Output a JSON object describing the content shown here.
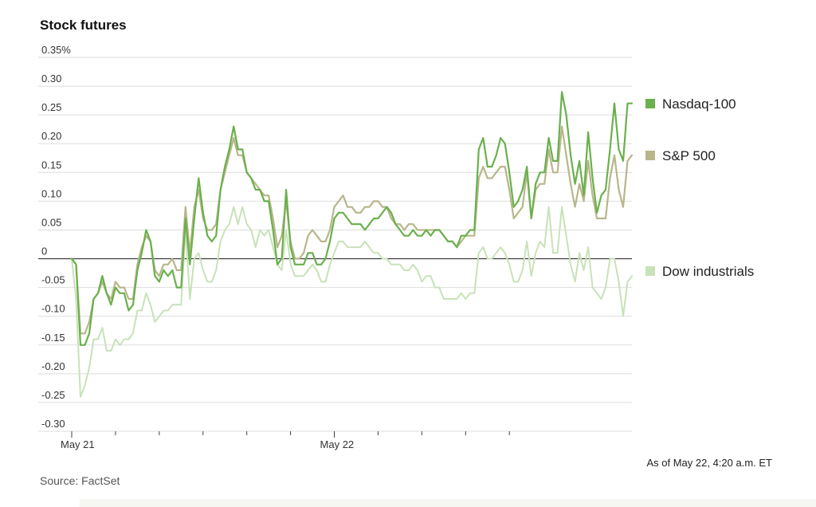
{
  "title": "Stock futures",
  "as_of": "As of May 22, 4:20 a.m. ET",
  "source": "Source: FactSet",
  "colors": {
    "nasdaq": "#6ab04c",
    "sp500": "#b8b68a",
    "dow": "#c8e2b8",
    "grid": "#dddddd",
    "zero": "#333333"
  },
  "chart_data": {
    "type": "line",
    "title": "Stock futures",
    "ylim": [
      -0.3,
      0.35
    ],
    "y_ticks": [
      {
        "v": 0.35,
        "label": "0.35%"
      },
      {
        "v": 0.3,
        "label": "0.30"
      },
      {
        "v": 0.25,
        "label": "0.25"
      },
      {
        "v": 0.2,
        "label": "0.20"
      },
      {
        "v": 0.15,
        "label": "0.15"
      },
      {
        "v": 0.1,
        "label": "0.10"
      },
      {
        "v": 0.05,
        "label": "0.05"
      },
      {
        "v": 0.0,
        "label": "0"
      },
      {
        "v": -0.05,
        "label": "-0.05"
      },
      {
        "v": -0.1,
        "label": "-0.10"
      },
      {
        "v": -0.15,
        "label": "-0.15"
      },
      {
        "v": -0.2,
        "label": "-0.20"
      },
      {
        "v": -0.25,
        "label": "-0.25"
      },
      {
        "v": -0.3,
        "label": "-0.30"
      }
    ],
    "x_labels": [
      {
        "index": 0,
        "label": "May 21"
      },
      {
        "index": 60,
        "label": "May 22"
      }
    ],
    "x_minor_ticks": [
      10,
      20,
      30,
      40,
      50,
      60,
      70,
      80,
      90,
      100
    ],
    "legend_position": "right",
    "series": [
      {
        "name": "Nasdaq-100",
        "key": "nasdaq",
        "values": [
          0.0,
          -0.01,
          -0.15,
          -0.15,
          -0.13,
          -0.07,
          -0.06,
          -0.03,
          -0.06,
          -0.08,
          -0.05,
          -0.06,
          -0.06,
          -0.09,
          -0.08,
          -0.02,
          0.01,
          0.05,
          0.03,
          -0.03,
          -0.04,
          -0.02,
          -0.03,
          -0.02,
          -0.05,
          -0.05,
          0.07,
          -0.01,
          0.07,
          0.14,
          0.08,
          0.04,
          0.03,
          0.04,
          0.12,
          0.16,
          0.19,
          0.23,
          0.19,
          0.19,
          0.15,
          0.14,
          0.12,
          0.12,
          0.1,
          0.1,
          0.05,
          -0.01,
          0.0,
          0.12,
          0.02,
          -0.01,
          -0.01,
          -0.01,
          0.01,
          0.01,
          -0.01,
          -0.01,
          0.0,
          0.03,
          0.07,
          0.08,
          0.08,
          0.07,
          0.06,
          0.06,
          0.06,
          0.05,
          0.06,
          0.07,
          0.07,
          0.08,
          0.09,
          0.08,
          0.06,
          0.05,
          0.04,
          0.04,
          0.05,
          0.04,
          0.04,
          0.05,
          0.04,
          0.05,
          0.05,
          0.04,
          0.03,
          0.03,
          0.02,
          0.04,
          0.04,
          0.05,
          0.05,
          0.19,
          0.21,
          0.16,
          0.16,
          0.18,
          0.21,
          0.2,
          0.15,
          0.09,
          0.1,
          0.12,
          0.16,
          0.07,
          0.13,
          0.15,
          0.15,
          0.21,
          0.17,
          0.17,
          0.29,
          0.25,
          0.18,
          0.13,
          0.17,
          0.11,
          0.22,
          0.14,
          0.08,
          0.11,
          0.12,
          0.19,
          0.27,
          0.19,
          0.17,
          0.27,
          0.27
        ]
      },
      {
        "name": "S&P 500",
        "key": "sp500",
        "values": [
          0.0,
          -0.01,
          -0.13,
          -0.13,
          -0.11,
          -0.07,
          -0.06,
          -0.04,
          -0.06,
          -0.07,
          -0.04,
          -0.05,
          -0.05,
          -0.07,
          -0.07,
          -0.01,
          0.02,
          0.04,
          0.03,
          -0.02,
          -0.03,
          -0.01,
          -0.01,
          0.0,
          -0.02,
          -0.02,
          0.09,
          0.01,
          0.09,
          0.12,
          0.07,
          0.05,
          0.05,
          0.06,
          0.12,
          0.15,
          0.18,
          0.21,
          0.18,
          0.18,
          0.15,
          0.14,
          0.13,
          0.12,
          0.11,
          0.11,
          0.07,
          0.02,
          0.04,
          0.1,
          0.03,
          0.0,
          0.0,
          0.01,
          0.04,
          0.05,
          0.04,
          0.03,
          0.03,
          0.05,
          0.09,
          0.1,
          0.11,
          0.09,
          0.09,
          0.08,
          0.08,
          0.09,
          0.09,
          0.1,
          0.1,
          0.09,
          0.09,
          0.07,
          0.06,
          0.06,
          0.05,
          0.06,
          0.06,
          0.05,
          0.05,
          0.05,
          0.05,
          0.05,
          0.05,
          0.04,
          0.03,
          0.03,
          0.02,
          0.03,
          0.04,
          0.04,
          0.04,
          0.14,
          0.16,
          0.14,
          0.14,
          0.15,
          0.16,
          0.16,
          0.12,
          0.07,
          0.08,
          0.09,
          0.15,
          0.07,
          0.12,
          0.13,
          0.13,
          0.19,
          0.15,
          0.15,
          0.23,
          0.18,
          0.13,
          0.09,
          0.13,
          0.1,
          0.17,
          0.11,
          0.07,
          0.07,
          0.07,
          0.14,
          0.18,
          0.12,
          0.09,
          0.17,
          0.18
        ]
      },
      {
        "name": "Dow industrials",
        "key": "dow",
        "values": [
          0.0,
          -0.07,
          -0.24,
          -0.22,
          -0.19,
          -0.14,
          -0.14,
          -0.12,
          -0.16,
          -0.16,
          -0.14,
          -0.15,
          -0.14,
          -0.14,
          -0.13,
          -0.09,
          -0.09,
          -0.06,
          -0.08,
          -0.11,
          -0.1,
          -0.09,
          -0.09,
          -0.08,
          -0.08,
          -0.08,
          0.05,
          -0.07,
          0.0,
          0.01,
          -0.02,
          -0.04,
          -0.04,
          -0.02,
          0.03,
          0.05,
          0.06,
          0.09,
          0.06,
          0.09,
          0.06,
          0.05,
          0.02,
          0.05,
          0.04,
          0.05,
          0.02,
          -0.01,
          -0.02,
          0.05,
          -0.01,
          -0.03,
          -0.03,
          -0.03,
          -0.02,
          -0.01,
          -0.02,
          -0.04,
          -0.04,
          -0.01,
          0.01,
          0.03,
          0.03,
          0.02,
          0.02,
          0.02,
          0.02,
          0.03,
          0.02,
          0.01,
          0.01,
          0.0,
          0.0,
          -0.01,
          -0.01,
          -0.01,
          -0.02,
          -0.02,
          -0.01,
          -0.02,
          -0.04,
          -0.03,
          -0.03,
          -0.05,
          -0.05,
          -0.07,
          -0.07,
          -0.07,
          -0.07,
          -0.06,
          -0.07,
          -0.06,
          -0.06,
          0.01,
          0.02,
          0.0,
          0.0,
          0.01,
          0.02,
          0.01,
          -0.01,
          -0.04,
          -0.04,
          -0.02,
          0.03,
          -0.03,
          0.01,
          0.03,
          0.02,
          0.09,
          0.01,
          0.01,
          0.09,
          0.04,
          -0.01,
          -0.04,
          0.01,
          -0.02,
          0.02,
          -0.05,
          -0.06,
          -0.07,
          -0.05,
          0.0,
          0.0,
          -0.04,
          -0.1,
          -0.04,
          -0.03
        ]
      }
    ]
  }
}
